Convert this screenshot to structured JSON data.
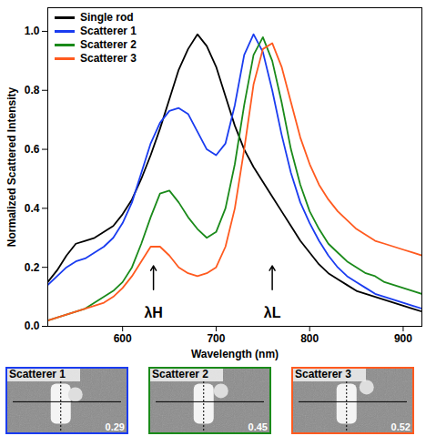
{
  "chart_data": {
    "type": "line",
    "x_label": "Wavelength (nm)",
    "y_label": "Normalized Scattered Intensity",
    "xlim": [
      520,
      920
    ],
    "ylim": [
      0,
      1.08
    ],
    "xticks": [
      600,
      700,
      800,
      900
    ],
    "yticks": [
      {
        "value": 0,
        "label": "0.0"
      },
      0.2,
      0.4,
      0.6,
      0.8,
      {
        "value": 1,
        "label": "1.0"
      }
    ],
    "legend": "top-left",
    "x": [
      520,
      530,
      540,
      550,
      560,
      570,
      580,
      590,
      600,
      610,
      620,
      630,
      640,
      650,
      660,
      670,
      680,
      690,
      700,
      710,
      720,
      730,
      740,
      750,
      760,
      770,
      780,
      790,
      800,
      810,
      820,
      830,
      840,
      850,
      860,
      870,
      880,
      890,
      900,
      910,
      920
    ],
    "series": [
      {
        "name": "Single rod",
        "color": "#000000",
        "values": [
          0.15,
          0.19,
          0.24,
          0.28,
          0.29,
          0.3,
          0.32,
          0.34,
          0.38,
          0.43,
          0.5,
          0.58,
          0.67,
          0.77,
          0.87,
          0.94,
          0.99,
          0.95,
          0.88,
          0.78,
          0.68,
          0.6,
          0.54,
          0.49,
          0.44,
          0.39,
          0.34,
          0.29,
          0.25,
          0.21,
          0.18,
          0.16,
          0.14,
          0.12,
          0.11,
          0.1,
          0.09,
          0.08,
          0.07,
          0.06,
          0.05
        ]
      },
      {
        "name": "Scatterer 1",
        "color": "#1a3cf0",
        "values": [
          0.14,
          0.17,
          0.2,
          0.22,
          0.23,
          0.25,
          0.27,
          0.3,
          0.35,
          0.42,
          0.52,
          0.62,
          0.69,
          0.73,
          0.74,
          0.72,
          0.66,
          0.6,
          0.58,
          0.62,
          0.75,
          0.92,
          0.99,
          0.93,
          0.8,
          0.65,
          0.52,
          0.42,
          0.35,
          0.29,
          0.24,
          0.2,
          0.17,
          0.15,
          0.13,
          0.11,
          0.1,
          0.09,
          0.08,
          0.07,
          0.06
        ]
      },
      {
        "name": "Scatterer 2",
        "color": "#1a8a1a",
        "values": [
          0.02,
          0.03,
          0.04,
          0.05,
          0.06,
          0.08,
          0.1,
          0.12,
          0.15,
          0.2,
          0.28,
          0.37,
          0.45,
          0.46,
          0.42,
          0.37,
          0.33,
          0.3,
          0.32,
          0.4,
          0.55,
          0.75,
          0.92,
          0.98,
          0.9,
          0.76,
          0.6,
          0.48,
          0.39,
          0.33,
          0.28,
          0.25,
          0.22,
          0.2,
          0.18,
          0.17,
          0.15,
          0.14,
          0.13,
          0.12,
          0.11
        ]
      },
      {
        "name": "Scatterer 3",
        "color": "#ff5a1f",
        "values": [
          0.02,
          0.03,
          0.04,
          0.05,
          0.06,
          0.07,
          0.08,
          0.1,
          0.13,
          0.17,
          0.22,
          0.27,
          0.27,
          0.24,
          0.2,
          0.18,
          0.17,
          0.18,
          0.2,
          0.27,
          0.4,
          0.6,
          0.82,
          0.94,
          0.96,
          0.88,
          0.76,
          0.64,
          0.55,
          0.48,
          0.43,
          0.39,
          0.36,
          0.33,
          0.31,
          0.29,
          0.28,
          0.27,
          0.26,
          0.25,
          0.24
        ]
      }
    ],
    "annotations": [
      {
        "text": "λH",
        "x": 633
      },
      {
        "text": "λL",
        "x": 760
      }
    ]
  },
  "images": [
    {
      "title": "Scatterer 1",
      "value": 0.29,
      "color": "#1a3cf0"
    },
    {
      "title": "Scatterer 2",
      "value": 0.45,
      "color": "#1a8a1a"
    },
    {
      "title": "Scatterer 3",
      "value": 0.52,
      "color": "#ff5a1f"
    }
  ]
}
